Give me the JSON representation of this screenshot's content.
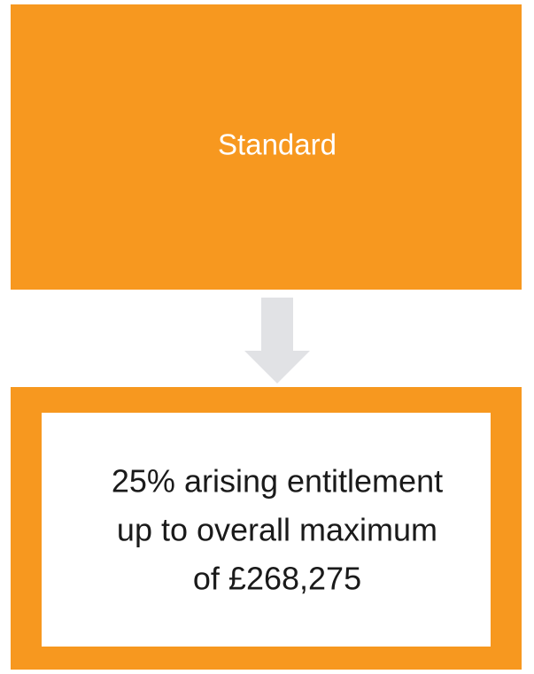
{
  "nodes": [
    {
      "label": "Standard"
    },
    {
      "lines": [
        "25% arising entitlement",
        "up to overall maximum",
        "of £268,275"
      ]
    }
  ]
}
